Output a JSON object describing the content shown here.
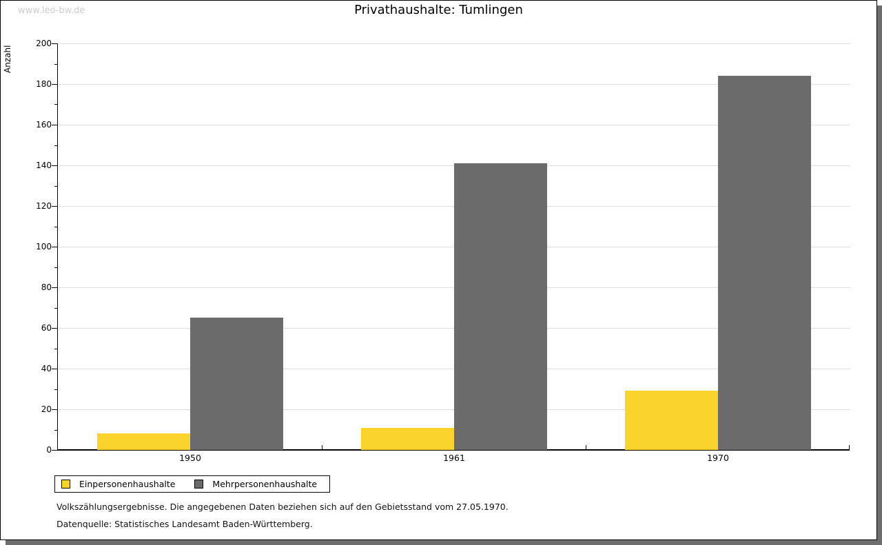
{
  "page": {
    "watermark": "www.leo-bw.de",
    "footer_line1": "Volkszählungsergebnisse. Die angegebenen Daten beziehen sich auf den Gebietsstand vom 27.05.1970.",
    "footer_line2": "Datenquelle: Statistisches Landesamt Baden-Württemberg."
  },
  "chart_data": {
    "type": "bar",
    "title": "Privathaushalte: Tumlingen",
    "xlabel": "",
    "ylabel": "Anzahl",
    "categories": [
      "1950",
      "1961",
      "1970"
    ],
    "series": [
      {
        "name": "Einpersonenhaushalte",
        "color": "#fbd32d",
        "values": [
          8,
          11,
          29
        ]
      },
      {
        "name": "Mehrpersonenhaushalte",
        "color": "#6b6b6b",
        "values": [
          65,
          141,
          184
        ]
      }
    ],
    "ylim": [
      0,
      200
    ],
    "ytick_step": 20,
    "ytick_minor_step": 10,
    "grid": true,
    "gridline_color": "#dddddd",
    "legend_position": "bottom-left"
  }
}
